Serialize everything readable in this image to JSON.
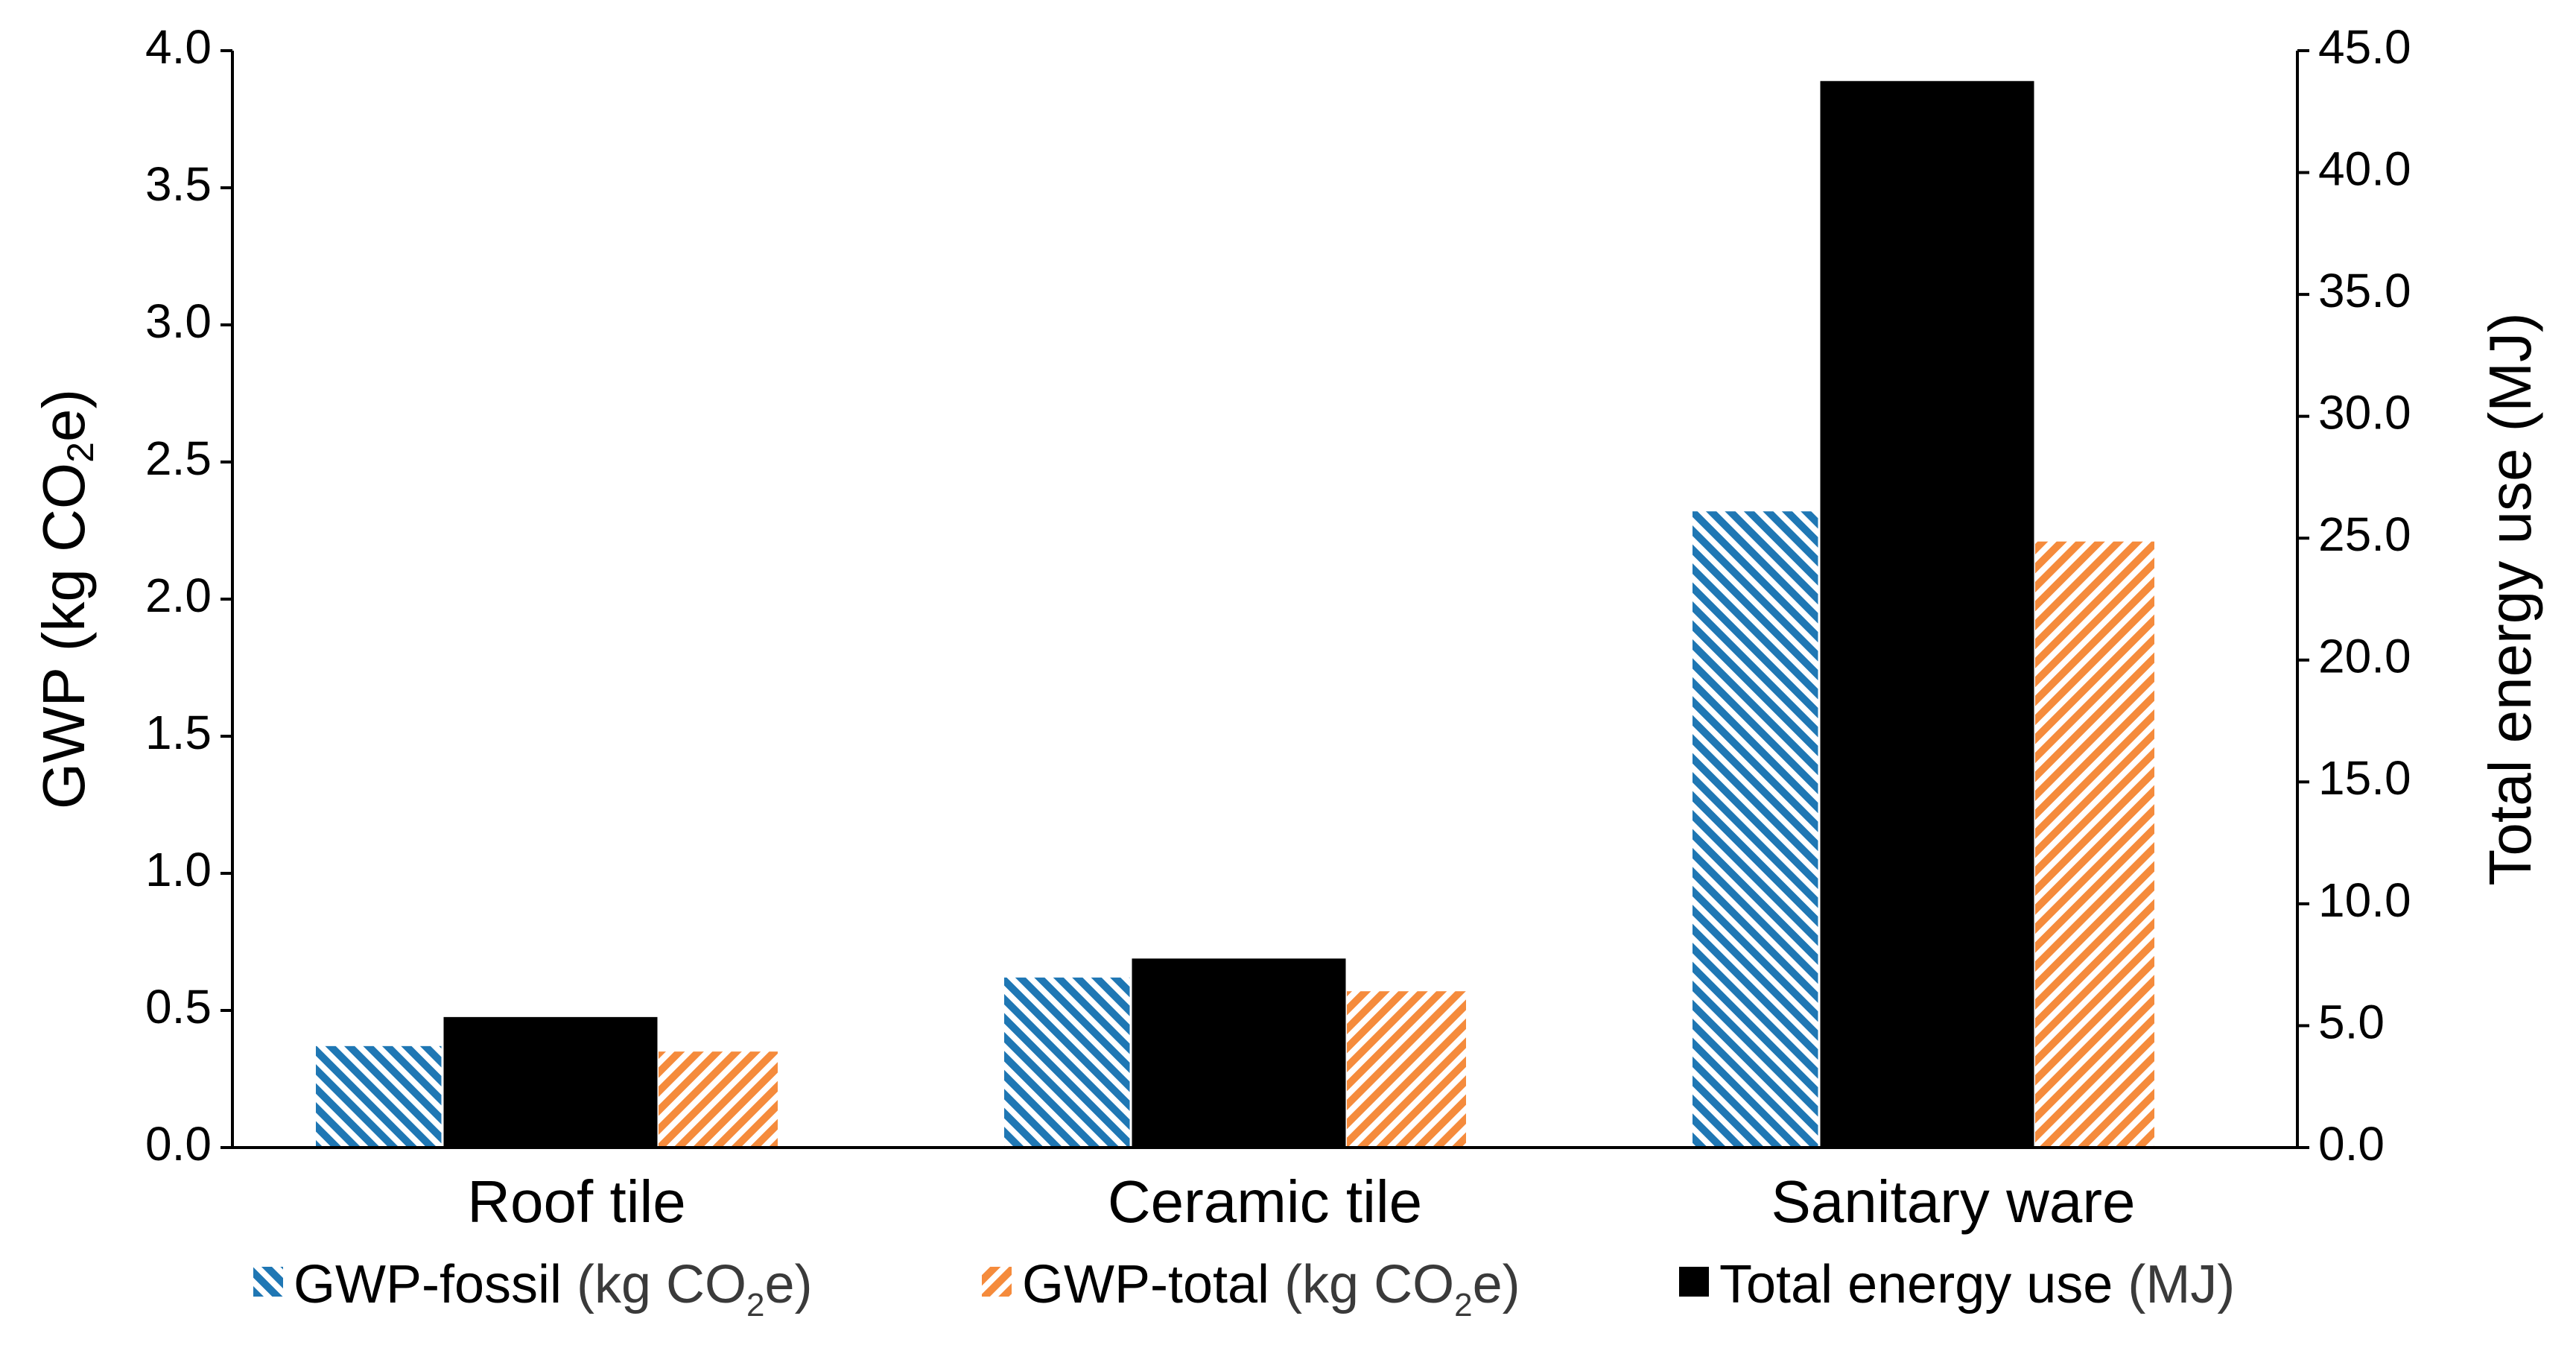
{
  "chart_data": {
    "type": "bar",
    "categories": [
      "Roof tile",
      "Ceramic tile",
      "Sanitary ware"
    ],
    "series": [
      {
        "name": "GWP-fossil (kg CO2e)",
        "axis": "left",
        "values": [
          0.37,
          0.62,
          2.32
        ],
        "color": "#1f77b4",
        "pattern": "hatch-blue"
      },
      {
        "name": "Total energy use (MJ)",
        "axis": "right",
        "values": [
          5.4,
          7.8,
          43.8
        ],
        "color": "#000000",
        "pattern": "solid"
      },
      {
        "name": "GWP-total (kg CO2e)",
        "axis": "left",
        "values": [
          0.35,
          0.57,
          2.21
        ],
        "color": "#f58b3c",
        "pattern": "hatch-orange"
      }
    ],
    "left_axis": {
      "title_prefix": "GWP (kg CO",
      "title_sub": "2",
      "title_suffix": "e)",
      "ylim": [
        0,
        4
      ],
      "ticks": [
        "0.0",
        "0.5",
        "1.0",
        "1.5",
        "2.0",
        "2.5",
        "3.0",
        "3.5",
        "4.0"
      ]
    },
    "right_axis": {
      "title": "Total energy use (MJ)",
      "ylim": [
        0,
        45
      ],
      "ticks": [
        "0.0",
        "5.0",
        "10.0",
        "15.0",
        "20.0",
        "25.0",
        "30.0",
        "35.0",
        "40.0",
        "45.0"
      ]
    },
    "legend": {
      "position": "bottom",
      "items": [
        {
          "prefix": "GWP-fossil ",
          "paren_prefix": "(kg CO",
          "sub": "2",
          "paren_suffix": "e)",
          "pattern": "hatch-blue"
        },
        {
          "prefix": "GWP-total ",
          "paren_prefix": "(kg CO",
          "sub": "2",
          "paren_suffix": "e)",
          "pattern": "hatch-orange"
        },
        {
          "prefix": "Total energy use ",
          "paren_prefix": "(MJ)",
          "sub": "",
          "paren_suffix": "",
          "pattern": "solid"
        }
      ]
    },
    "grid": false
  }
}
